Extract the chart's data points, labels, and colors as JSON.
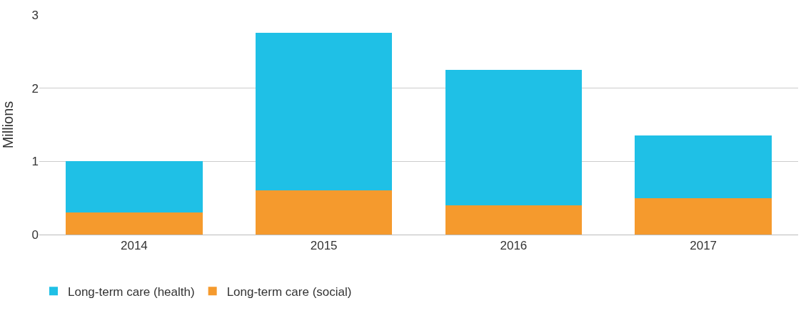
{
  "chart_data": {
    "type": "bar",
    "stacked": true,
    "ylabel": "Millions",
    "categories": [
      "2014",
      "2015",
      "2016",
      "2017"
    ],
    "series": [
      {
        "name": "Long-term care (social)",
        "color": "#f59a2d",
        "values": [
          0.3,
          0.6,
          0.4,
          0.5
        ]
      },
      {
        "name": "Long-term care (health)",
        "color": "#1fc0e6",
        "values": [
          0.7,
          2.16,
          1.85,
          0.85
        ]
      }
    ],
    "ylim": [
      0,
      3
    ],
    "yticks": [
      0,
      1,
      2,
      3
    ],
    "grid": "y",
    "legend": "bottom left"
  }
}
